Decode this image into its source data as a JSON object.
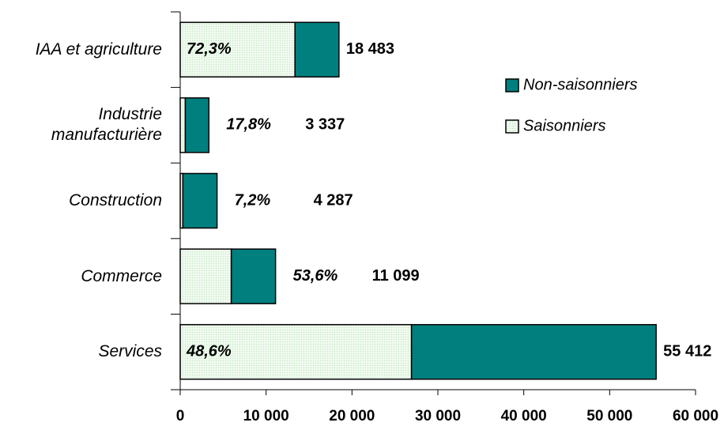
{
  "chart_data": {
    "type": "stacked-bar-horizontal",
    "categories": [
      "IAA et agriculture",
      "Industrie manufacturière",
      "Construction",
      "Commerce",
      "Services"
    ],
    "series": [
      {
        "name": "Saisonniers",
        "color": "#eefaee",
        "values": [
          13363,
          594,
          309,
          5949,
          26930
        ]
      },
      {
        "name": "Non-saisonniers",
        "color": "#007f7f",
        "values": [
          5120,
          2743,
          3978,
          5150,
          28482
        ]
      }
    ],
    "share_labels": [
      "72,3%",
      "17,8%",
      "7,2%",
      "53,6%",
      "48,6%"
    ],
    "total_labels": [
      "18 483",
      "3 337",
      "4 287",
      "11 099",
      "55 412"
    ],
    "xlim": [
      0,
      60000
    ],
    "xticks": [
      0,
      {
        "value": 10000,
        "label": "10 000"
      },
      {
        "value": 20000,
        "label": "20 000"
      },
      {
        "value": 30000,
        "label": "30 000"
      },
      {
        "value": 40000,
        "label": "40 000"
      },
      {
        "value": 50000,
        "label": "50 000"
      },
      {
        "value": 60000,
        "label": "60 000"
      }
    ],
    "legend": "right"
  }
}
